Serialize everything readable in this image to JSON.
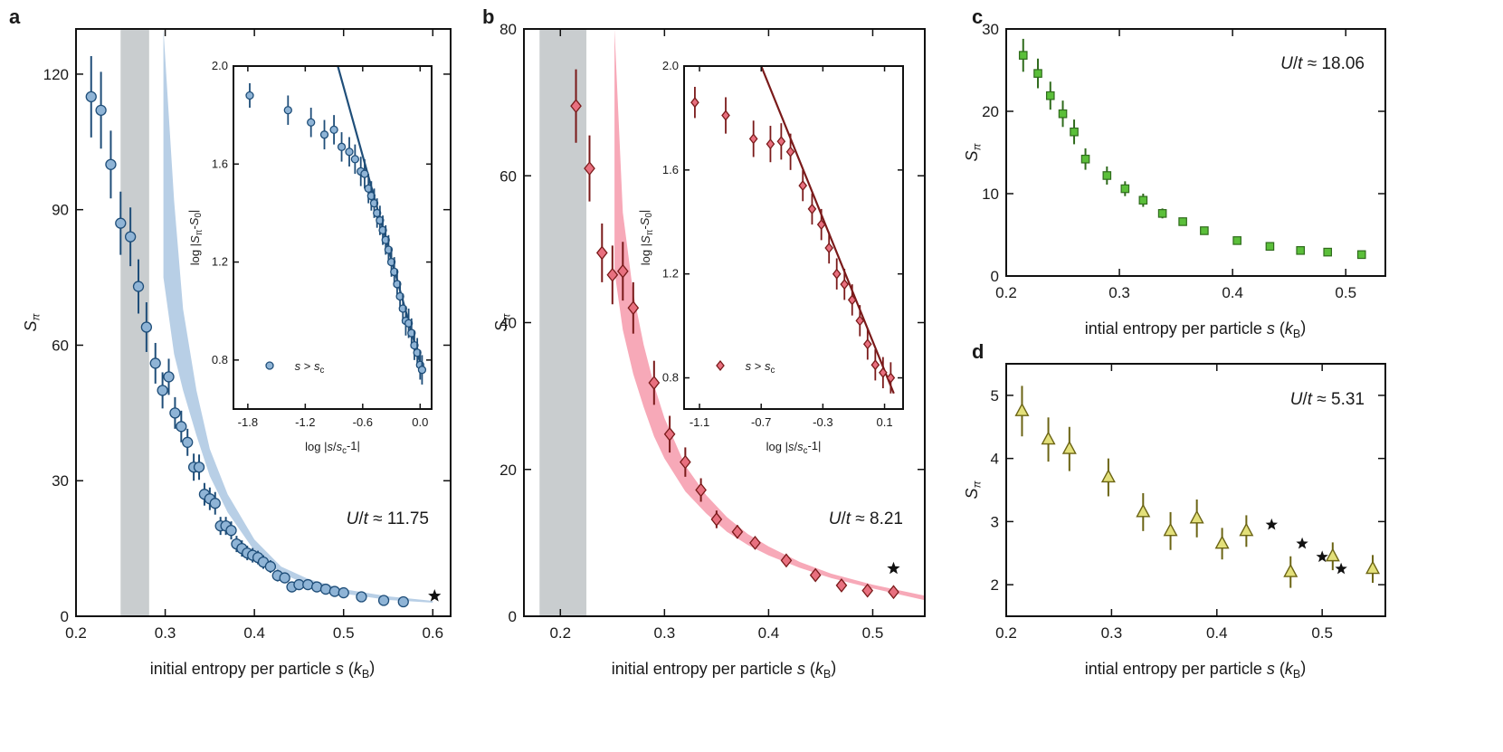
{
  "figure": {
    "x_label": "initial entropy per particle s (kB)",
    "x_label_alt": "intial entropy per particle s (kB)",
    "y_label": "Sπ"
  },
  "chart_data": [
    {
      "panel": "a",
      "type": "scatter",
      "annotation": "U/t ≈ 11.75",
      "xlim": [
        0.2,
        0.62
      ],
      "ylim": [
        0,
        130
      ],
      "xticks": [
        0.2,
        0.3,
        0.4,
        0.5,
        0.6
      ],
      "yticks": [
        0,
        30,
        60,
        90,
        120
      ],
      "xlabel": "initial entropy per particle s (kB)",
      "ylabel": "Sπ",
      "colors": {
        "marker": "#8fb4d6",
        "edge": "#1f4e79",
        "band": "#b8cfe6",
        "shade": "#c9cdcf"
      },
      "shaded_region": [
        0.25,
        0.282
      ],
      "band": {
        "x": [
          0.298,
          0.31,
          0.32,
          0.335,
          0.35,
          0.37,
          0.4,
          0.43,
          0.46,
          0.5,
          0.55,
          0.6
        ],
        "lower": [
          75,
          58,
          50,
          40,
          31,
          23,
          14.5,
          9.5,
          7,
          5,
          3.6,
          3
        ],
        "upper": [
          130,
          92,
          68,
          50,
          37,
          27,
          17,
          11,
          8.3,
          6,
          4.4,
          3.4
        ]
      },
      "series": [
        {
          "x": [
            0.217,
            0.228,
            0.239,
            0.25,
            0.261,
            0.27,
            0.279,
            0.289,
            0.297,
            0.304,
            0.311,
            0.318,
            0.325,
            0.332,
            0.338,
            0.344,
            0.35,
            0.356,
            0.362,
            0.368,
            0.374,
            0.38,
            0.386,
            0.392,
            0.398,
            0.404,
            0.41,
            0.418,
            0.426,
            0.434,
            0.442,
            0.45,
            0.46,
            0.47,
            0.48,
            0.49,
            0.5,
            0.52,
            0.545,
            0.567
          ],
          "y": [
            115,
            112,
            100,
            87,
            84,
            73,
            64,
            56,
            50,
            53,
            45,
            42,
            38.5,
            33,
            33,
            27,
            26,
            25,
            20,
            20,
            19,
            16,
            15,
            14,
            13.5,
            13,
            12,
            11,
            9,
            8.5,
            6.5,
            7,
            7,
            6.5,
            6,
            5.5,
            5.2,
            4.3,
            3.5,
            3.2
          ],
          "yerr": [
            9,
            8.5,
            7.5,
            7,
            6.5,
            6,
            5.5,
            4.5,
            4,
            4,
            3.5,
            3.5,
            3,
            3,
            2.8,
            2.5,
            2.5,
            2.5,
            2,
            2,
            2,
            1.8,
            1.8,
            1.6,
            1.6,
            1.5,
            1.5,
            1.4,
            1.3,
            1.2,
            1.2,
            1.1,
            1,
            1,
            1,
            0.9,
            0.9,
            0.8,
            0.8,
            0.7
          ]
        }
      ],
      "stars": {
        "x": [
          0.602
        ],
        "y": [
          4.5
        ]
      },
      "inset": {
        "type": "scatter",
        "xlim": [
          -1.95,
          0.12
        ],
        "ylim": [
          0.6,
          2.0
        ],
        "xticks": [
          -1.8,
          -1.2,
          -0.6,
          0.0
        ],
        "yticks": [
          0.8,
          1.2,
          1.6,
          2.0
        ],
        "xlabel": "log |s/sc-1|",
        "ylabel": "log |Sπ-S0|",
        "legend": "s > sc",
        "fit_line": {
          "x": [
            -0.86,
            0.02
          ],
          "y": [
            2.0,
            0.76
          ]
        },
        "series": [
          {
            "x": [
              -1.78,
              -1.38,
              -1.14,
              -1.0,
              -0.9,
              -0.82,
              -0.74,
              -0.68,
              -0.62,
              -0.58,
              -0.54,
              -0.51,
              -0.48,
              -0.45,
              -0.42,
              -0.39,
              -0.36,
              -0.33,
              -0.3,
              -0.27,
              -0.24,
              -0.21,
              -0.18,
              -0.15,
              -0.12,
              -0.09,
              -0.06,
              -0.03,
              0.0,
              0.02
            ],
            "y": [
              1.88,
              1.82,
              1.77,
              1.72,
              1.74,
              1.67,
              1.65,
              1.62,
              1.57,
              1.56,
              1.5,
              1.47,
              1.44,
              1.4,
              1.37,
              1.33,
              1.29,
              1.25,
              1.2,
              1.16,
              1.11,
              1.06,
              1.01,
              0.96,
              0.95,
              0.91,
              0.86,
              0.83,
              0.78,
              0.76
            ],
            "yerr": [
              0.05,
              0.06,
              0.06,
              0.06,
              0.06,
              0.06,
              0.06,
              0.06,
              0.06,
              0.06,
              0.06,
              0.06,
              0.06,
              0.06,
              0.06,
              0.06,
              0.06,
              0.06,
              0.06,
              0.06,
              0.06,
              0.06,
              0.06,
              0.06,
              0.06,
              0.06,
              0.06,
              0.06,
              0.06,
              0.06
            ]
          }
        ]
      }
    },
    {
      "panel": "b",
      "type": "scatter",
      "annotation": "U/t ≈ 8.21",
      "xlim": [
        0.165,
        0.55
      ],
      "ylim": [
        0,
        80
      ],
      "xticks": [
        0.2,
        0.3,
        0.4,
        0.5
      ],
      "yticks": [
        0,
        20,
        40,
        60,
        80
      ],
      "xlabel": "initial entropy per particle s (kB)",
      "ylabel": "Sπ",
      "colors": {
        "marker": "#e8707f",
        "edge": "#7a1a1a",
        "band": "#f7a9b8",
        "shade": "#c9cdcf"
      },
      "shaded_region": [
        0.18,
        0.225
      ],
      "band": {
        "x": [
          0.252,
          0.26,
          0.27,
          0.28,
          0.29,
          0.3,
          0.32,
          0.34,
          0.36,
          0.38,
          0.4,
          0.43,
          0.46,
          0.5,
          0.55
        ],
        "lower": [
          47,
          39,
          33,
          28.5,
          24.5,
          21.5,
          17,
          14,
          11.5,
          9.7,
          8.3,
          6.6,
          5.2,
          3.8,
          2.2
        ],
        "upper": [
          80,
          55,
          44,
          37,
          31.5,
          27,
          20.5,
          16.5,
          13.5,
          11.2,
          9.5,
          7.4,
          5.8,
          4.3,
          2.8
        ]
      },
      "series": [
        {
          "x": [
            0.215,
            0.228,
            0.24,
            0.25,
            0.26,
            0.27,
            0.29,
            0.305,
            0.32,
            0.335,
            0.35,
            0.37,
            0.387,
            0.417,
            0.445,
            0.47,
            0.495,
            0.52
          ],
          "y": [
            69.5,
            61,
            49.5,
            46.5,
            47,
            42,
            31.8,
            24.8,
            21,
            17.2,
            13.2,
            11.5,
            10,
            7.6,
            5.6,
            4.2,
            3.5,
            3.3
          ],
          "yerr": [
            5,
            4.5,
            4,
            4,
            4,
            3.5,
            3,
            2.5,
            2,
            1.6,
            1.2,
            0.9,
            0.8,
            0.7,
            0.6,
            0.5,
            0.4,
            0.4
          ]
        }
      ],
      "stars": {
        "x": [
          0.52
        ],
        "y": [
          6.5
        ]
      },
      "inset": {
        "type": "scatter",
        "xlim": [
          -1.2,
          0.22
        ],
        "ylim": [
          0.68,
          2.0
        ],
        "xticks": [
          -1.1,
          -0.7,
          -0.3,
          0.1
        ],
        "yticks": [
          0.8,
          1.2,
          1.6,
          2.0
        ],
        "xlabel": "log |s/sc-1|",
        "ylabel": "log |Sπ-S0|",
        "legend": "s > sc",
        "fit_line": {
          "x": [
            -0.7,
            0.16
          ],
          "y": [
            2.0,
            0.74
          ]
        },
        "series": [
          {
            "x": [
              -1.13,
              -0.93,
              -0.75,
              -0.64,
              -0.57,
              -0.51,
              -0.43,
              -0.37,
              -0.31,
              -0.26,
              -0.21,
              -0.16,
              -0.11,
              -0.06,
              -0.01,
              0.04,
              0.09,
              0.14
            ],
            "y": [
              1.86,
              1.81,
              1.72,
              1.7,
              1.71,
              1.67,
              1.54,
              1.45,
              1.39,
              1.3,
              1.2,
              1.16,
              1.1,
              1.02,
              0.93,
              0.85,
              0.82,
              0.8
            ],
            "yerr": [
              0.06,
              0.07,
              0.07,
              0.07,
              0.07,
              0.07,
              0.06,
              0.06,
              0.06,
              0.06,
              0.06,
              0.06,
              0.06,
              0.06,
              0.06,
              0.06,
              0.06,
              0.06
            ]
          }
        ]
      }
    },
    {
      "panel": "c",
      "type": "scatter",
      "annotation": "U/t ≈ 18.06",
      "xlim": [
        0.2,
        0.535
      ],
      "ylim": [
        0,
        30
      ],
      "xticks": [
        0.2,
        0.3,
        0.4,
        0.5
      ],
      "yticks": [
        0,
        10,
        20,
        30
      ],
      "xlabel": "intial entropy per particle s (kB)",
      "ylabel": "Sπ",
      "colors": {
        "marker": "#5bbf3a",
        "edge": "#2f6b1c"
      },
      "series": [
        {
          "x": [
            0.215,
            0.228,
            0.239,
            0.25,
            0.26,
            0.27,
            0.289,
            0.305,
            0.321,
            0.338,
            0.356,
            0.375,
            0.404,
            0.433,
            0.46,
            0.484,
            0.514
          ],
          "y": [
            26.8,
            24.6,
            21.9,
            19.7,
            17.5,
            14.2,
            12.2,
            10.6,
            9.2,
            7.6,
            6.6,
            5.5,
            4.3,
            3.6,
            3.1,
            2.9,
            2.6
          ],
          "yerr": [
            2,
            1.8,
            1.7,
            1.6,
            1.5,
            1.3,
            1.1,
            0.9,
            0.8,
            0.6,
            0.5,
            0.4,
            0.3,
            0.3,
            0.3,
            0.3,
            0.3
          ]
        }
      ]
    },
    {
      "panel": "d",
      "type": "scatter",
      "annotation": "U/t ≈ 5.31",
      "xlim": [
        0.2,
        0.56
      ],
      "ylim": [
        1.5,
        5.5
      ],
      "xticks": [
        0.2,
        0.3,
        0.4,
        0.5
      ],
      "yticks": [
        2,
        3,
        4,
        5
      ],
      "xlabel": "intial entropy per particle s (kB)",
      "ylabel": "Sπ",
      "colors": {
        "marker": "#e3e07a",
        "edge": "#6b6414"
      },
      "series": [
        {
          "x": [
            0.215,
            0.24,
            0.26,
            0.297,
            0.33,
            0.356,
            0.381,
            0.405,
            0.428,
            0.47,
            0.51,
            0.548
          ],
          "y": [
            4.75,
            4.3,
            4.15,
            3.7,
            3.15,
            2.85,
            3.05,
            2.65,
            2.85,
            2.2,
            2.45,
            2.25
          ],
          "yerr": [
            0.4,
            0.35,
            0.35,
            0.3,
            0.3,
            0.3,
            0.3,
            0.25,
            0.25,
            0.25,
            0.22,
            0.22
          ]
        }
      ],
      "stars": {
        "x": [
          0.452,
          0.481,
          0.5,
          0.518
        ],
        "y": [
          2.95,
          2.65,
          2.44,
          2.25
        ]
      }
    }
  ]
}
